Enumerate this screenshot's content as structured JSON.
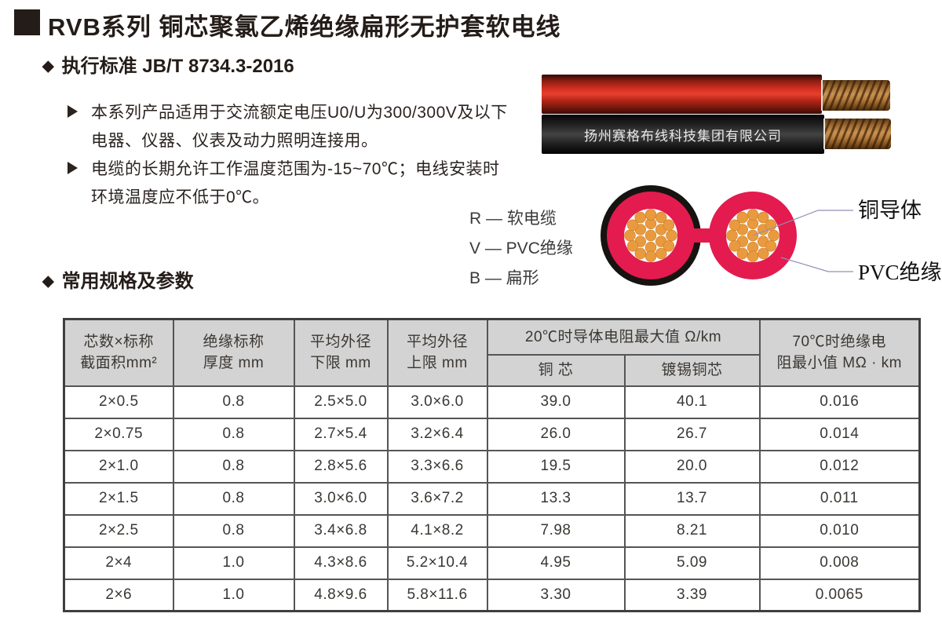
{
  "header": {
    "title": "RVB系列 铜芯聚氯乙烯绝缘扁形无护套软电线",
    "standard": "执行标准 JB/T 8734.3-2016",
    "bullets": [
      {
        "line1": "本系列产品适用于交流额定电压U0/U为300/300V及以下",
        "line2": "电器、仪器、仪表及动力照明连接用。"
      },
      {
        "line1": "电缆的长期允许工作温度范围为-15~70℃；电线安装时",
        "line2": "环境温度应不低于0℃。"
      }
    ]
  },
  "photo": {
    "brand_text": "扬州赛格布线科技集团有限公司"
  },
  "legend": {
    "items": [
      "R — 软电缆",
      "V — PVC绝缘",
      "B — 扁形"
    ]
  },
  "diagram": {
    "labels": {
      "conductor": "铜导体",
      "insulation": "PVC绝缘"
    }
  },
  "specs": {
    "section_title": "常用规格及参数",
    "table": {
      "headers": {
        "col1_line1": "芯数×标称",
        "col1_line2": "截面积mm²",
        "col2_line1": "绝缘标称",
        "col2_line2": "厚度 mm",
        "col3_line1": "平均外径",
        "col3_line2": "下限 mm",
        "col4_line1": "平均外径",
        "col4_line2": "上限 mm",
        "group_resistance": "20℃时导体电阻最大值 Ω/km",
        "sub_copper": "铜 芯",
        "sub_tinned": "镀锡铜芯",
        "col7_line1": "70℃时绝缘电",
        "col7_line2": "阻最小值 MΩ · km"
      },
      "rows": [
        [
          "2×0.5",
          "0.8",
          "2.5×5.0",
          "3.0×6.0",
          "39.0",
          "40.1",
          "0.016"
        ],
        [
          "2×0.75",
          "0.8",
          "2.7×5.4",
          "3.2×6.4",
          "26.0",
          "26.7",
          "0.014"
        ],
        [
          "2×1.0",
          "0.8",
          "2.8×5.6",
          "3.3×6.6",
          "19.5",
          "20.0",
          "0.012"
        ],
        [
          "2×1.5",
          "0.8",
          "3.0×6.0",
          "3.6×7.2",
          "13.3",
          "13.7",
          "0.011"
        ],
        [
          "2×2.5",
          "0.8",
          "3.4×6.8",
          "4.1×8.2",
          "7.98",
          "8.21",
          "0.010"
        ],
        [
          "2×4",
          "1.0",
          "4.3×8.6",
          "5.2×10.4",
          "4.95",
          "5.09",
          "0.008"
        ],
        [
          "2×6",
          "1.0",
          "4.8×9.6",
          "5.8×11.6",
          "3.30",
          "3.39",
          "0.0065"
        ]
      ]
    }
  },
  "colors": {
    "cable_red": "#d93123",
    "cable_black": "#1c1c1c",
    "pvc_pink": "#e31b4e",
    "ring_black": "#171311",
    "strand_orange": "#ea9a3e",
    "strand_edge": "#c97c1f",
    "copper": "#b5793a",
    "header_gray": "#d3d3d3",
    "table_border": "#555555",
    "text_dark": "#241c18",
    "leader_line": "#9090b8"
  }
}
